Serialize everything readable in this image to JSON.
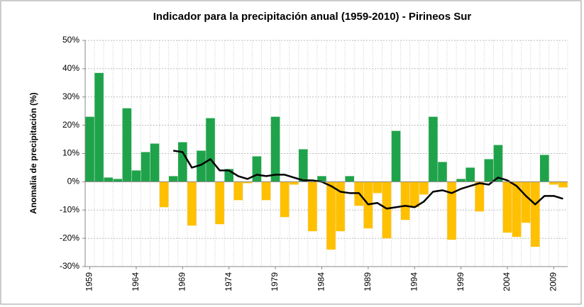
{
  "chart_data": {
    "type": "bar",
    "title": "Indicador para la precipitación anual (1959-2010) - Pirineos Sur",
    "y_label": "Anomalia de precipitación (%)",
    "x": [
      1959,
      1960,
      1961,
      1962,
      1963,
      1964,
      1965,
      1966,
      1967,
      1968,
      1969,
      1970,
      1971,
      1972,
      1973,
      1974,
      1975,
      1976,
      1977,
      1978,
      1979,
      1980,
      1981,
      1982,
      1983,
      1984,
      1985,
      1986,
      1987,
      1988,
      1989,
      1990,
      1991,
      1992,
      1993,
      1994,
      1995,
      1996,
      1997,
      1998,
      1999,
      2000,
      2001,
      2002,
      2003,
      2004,
      2005,
      2006,
      2007,
      2008,
      2009,
      2010
    ],
    "series": [
      {
        "type": "bar",
        "color": "#1fa34a",
        "negative_color": "#ffc000",
        "values": [
          23,
          38.5,
          1.5,
          1,
          26,
          4,
          10.5,
          13.5,
          -9,
          2,
          14,
          -15.5,
          11,
          22.5,
          -15,
          4.5,
          -6.5,
          -0.5,
          9,
          -6.5,
          23,
          -12.5,
          -1,
          11.5,
          -17.5,
          2,
          -24,
          -17.5,
          2,
          -8.5,
          -16.5,
          -4,
          -20,
          18,
          -13.5,
          -9,
          -4.5,
          23,
          7,
          -20.5,
          1,
          5,
          -10.5,
          8,
          13,
          -18,
          -19.5,
          -14.5,
          -23,
          9.5,
          -1,
          -2
        ]
      },
      {
        "type": "line",
        "color": "#000000",
        "values": [
          null,
          null,
          null,
          null,
          null,
          null,
          null,
          null,
          null,
          11,
          10.5,
          5,
          6,
          8,
          4,
          4,
          2,
          1,
          2.5,
          2,
          2.5,
          2.5,
          1.5,
          0.5,
          0.5,
          0,
          -1.5,
          -3.5,
          -4,
          -4,
          -8,
          -7.5,
          -9.5,
          -9,
          -8.5,
          -9,
          -7,
          -3.5,
          -3,
          -4,
          -2.5,
          -1.5,
          -0.5,
          -1,
          1.5,
          0.5,
          -1.5,
          -5,
          -8,
          -5,
          -5,
          -6
        ]
      }
    ],
    "xlim": [
      1958.5,
      2010.5
    ],
    "xticks": [
      1959,
      1964,
      1969,
      1974,
      1979,
      1984,
      1989,
      1994,
      1999,
      2004,
      2009
    ],
    "ylim": [
      -30,
      50
    ],
    "yticks": [
      {
        "value": -30,
        "label": "-30%"
      },
      {
        "value": -20,
        "label": "-20%"
      },
      {
        "value": -10,
        "label": "-10%"
      },
      {
        "value": 0,
        "label": "0%"
      },
      {
        "value": 10,
        "label": "10%"
      },
      {
        "value": 20,
        "label": "20%"
      },
      {
        "value": 30,
        "label": "30%"
      },
      {
        "value": 40,
        "label": "40%"
      },
      {
        "value": 50,
        "label": "50%"
      }
    ],
    "grid": true
  }
}
